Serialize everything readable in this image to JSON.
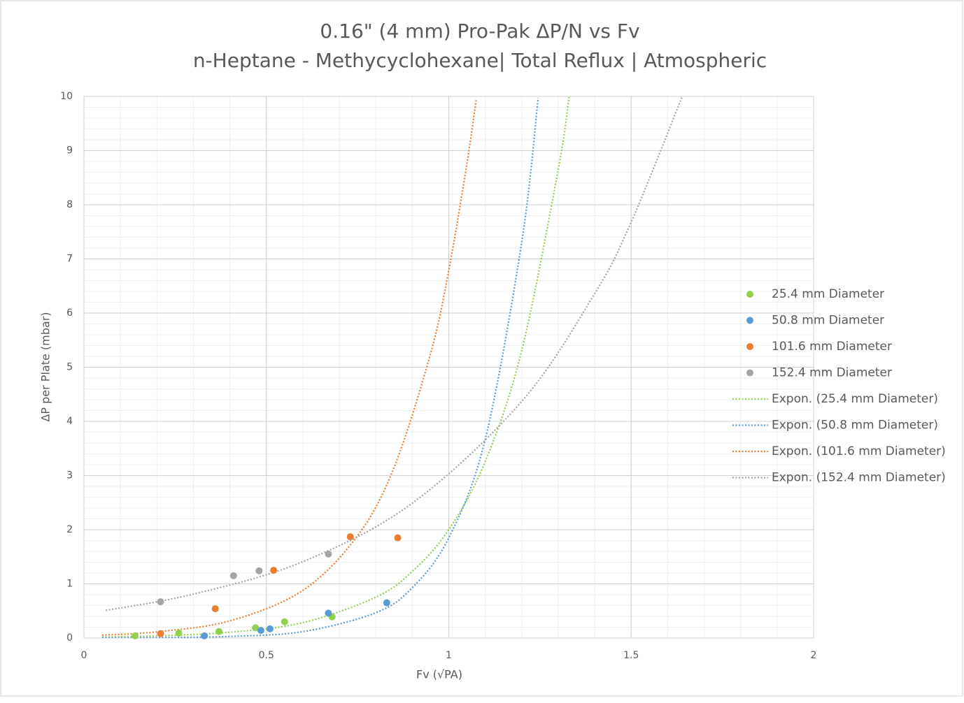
{
  "chart_data": {
    "type": "scatter",
    "title": "0.16\" (4 mm) Pro-Pak ΔP/N vs Fv",
    "subtitle": "n-Heptane - Methycyclohexane| Total Reflux | Atmospheric",
    "x_label": "Fv (√PA)",
    "y_label": "ΔP per Plate (mbar)",
    "xlim": [
      0,
      2
    ],
    "ylim": [
      0,
      10
    ],
    "xticks": [
      0,
      0.5,
      1,
      1.5,
      2
    ],
    "yticks": [
      0,
      1,
      2,
      3,
      4,
      5,
      6,
      7,
      8,
      9,
      10
    ],
    "grid": true,
    "legend": "right",
    "series": [
      {
        "name": "25.4 mm Diameter",
        "color": "#92d050",
        "x": [
          0.14,
          0.26,
          0.37,
          0.47,
          0.55,
          0.68
        ],
        "values": [
          0.04,
          0.09,
          0.12,
          0.19,
          0.3,
          0.39
        ]
      },
      {
        "name": "50.8 mm Diameter",
        "color": "#5b9bd5",
        "x": [
          0.33,
          0.485,
          0.51,
          0.67,
          0.83
        ],
        "values": [
          0.04,
          0.14,
          0.17,
          0.46,
          0.65
        ]
      },
      {
        "name": "101.6 mm Diameter",
        "color": "#ed7d31",
        "x": [
          0.21,
          0.36,
          0.52,
          0.73,
          0.86
        ],
        "values": [
          0.08,
          0.54,
          1.25,
          1.87,
          1.85
        ]
      },
      {
        "name": "152.4 mm Diameter",
        "color": "#a5a5a5",
        "x": [
          0.21,
          0.41,
          0.48,
          0.67
        ],
        "values": [
          0.67,
          1.15,
          1.24,
          1.55
        ]
      }
    ],
    "trendlines": [
      {
        "name": "Expon. (25.4 mm Diameter)",
        "color": "#92d050",
        "x": [
          0.05,
          0.2,
          0.4,
          0.6,
          0.8,
          0.9,
          1.0,
          1.1,
          1.2,
          1.3,
          1.33
        ],
        "values": [
          0.019,
          0.04,
          0.107,
          0.284,
          0.754,
          1.23,
          2.0,
          3.26,
          5.31,
          8.65,
          10.0
        ]
      },
      {
        "name": "Expon. (50.8 mm Diameter)",
        "color": "#5b9bd5",
        "x": [
          0.05,
          0.2,
          0.4,
          0.6,
          0.8,
          0.9,
          1.0,
          1.1,
          1.2,
          1.245
        ],
        "values": [
          0.0027,
          0.0075,
          0.03,
          0.118,
          0.467,
          0.93,
          1.85,
          3.67,
          7.31,
          9.97
        ]
      },
      {
        "name": "Expon. (101.6 mm Diameter)",
        "color": "#ed7d31",
        "x": [
          0.05,
          0.2,
          0.4,
          0.6,
          0.75,
          0.85,
          0.95,
          1.0,
          1.05,
          1.075
        ],
        "values": [
          0.053,
          0.114,
          0.317,
          0.88,
          1.89,
          3.15,
          5.25,
          6.79,
          8.77,
          9.93
        ]
      },
      {
        "name": "Expon. (152.4 mm Diameter)",
        "color": "#a5a5a5",
        "x": [
          0.06,
          0.3,
          0.6,
          0.9,
          1.2,
          1.4,
          1.5,
          1.64
        ],
        "values": [
          0.51,
          0.81,
          1.41,
          2.49,
          4.37,
          6.36,
          7.68,
          10.0
        ]
      }
    ]
  }
}
